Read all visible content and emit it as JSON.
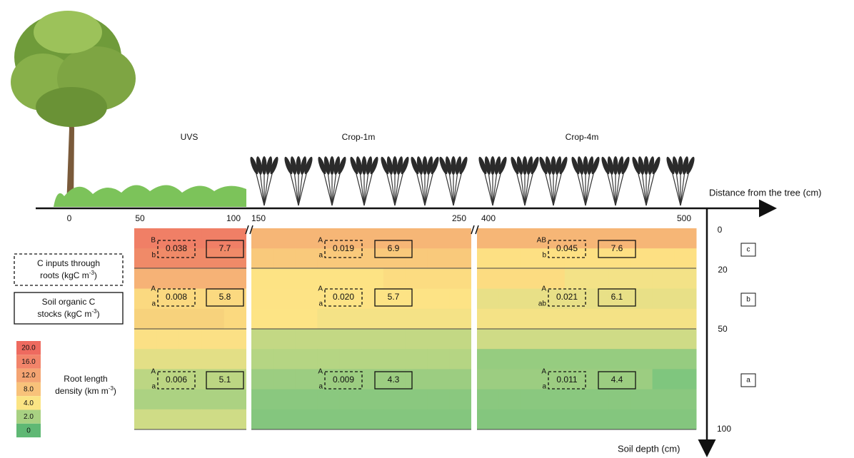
{
  "zones": [
    "UVS",
    "Crop-1m",
    "Crop-4m"
  ],
  "x_axis": {
    "label": "Distance from the tree (cm)",
    "ticks": [
      "0",
      "50",
      "100",
      "150",
      "250",
      "400",
      "500"
    ]
  },
  "y_axis": {
    "label": "Soil depth (cm)",
    "ticks": [
      "0",
      "20",
      "50",
      "100"
    ]
  },
  "legend": {
    "c_inputs": [
      "C inputs through",
      "roots (kgC m",
      "-3",
      ")"
    ],
    "soc_stocks": [
      "Soil organic C",
      "stocks (kgC m",
      "-3",
      ")"
    ],
    "root_density": [
      "Root length",
      "density (km m",
      "-3",
      ")"
    ],
    "scale": [
      "20.0",
      "16.0",
      "12.0",
      "8.0",
      "4.0",
      "2.0",
      "0"
    ]
  },
  "panels": [
    {
      "rows": [
        {
          "upper": "B",
          "lower": "b",
          "c_input": "0.038",
          "soc": "7.7"
        },
        {
          "upper": "A",
          "lower": "a",
          "c_input": "0.008",
          "soc": "5.8"
        },
        {
          "upper": "A",
          "lower": "a",
          "c_input": "0.006",
          "soc": "5.1"
        }
      ]
    },
    {
      "rows": [
        {
          "upper": "A",
          "lower": "a",
          "c_input": "0.019",
          "soc": "6.9"
        },
        {
          "upper": "A",
          "lower": "a",
          "c_input": "0.020",
          "soc": "5.7"
        },
        {
          "upper": "A",
          "lower": "a",
          "c_input": "0.009",
          "soc": "4.3"
        }
      ]
    },
    {
      "rows": [
        {
          "upper": "AB",
          "lower": "b",
          "c_input": "0.045",
          "soc": "7.6"
        },
        {
          "upper": "A",
          "lower": "ab",
          "c_input": "0.021",
          "soc": "6.1"
        },
        {
          "upper": "A",
          "lower": "a",
          "c_input": "0.011",
          "soc": "4.4"
        }
      ]
    }
  ],
  "depth_letters": [
    "c",
    "b",
    "a"
  ]
}
